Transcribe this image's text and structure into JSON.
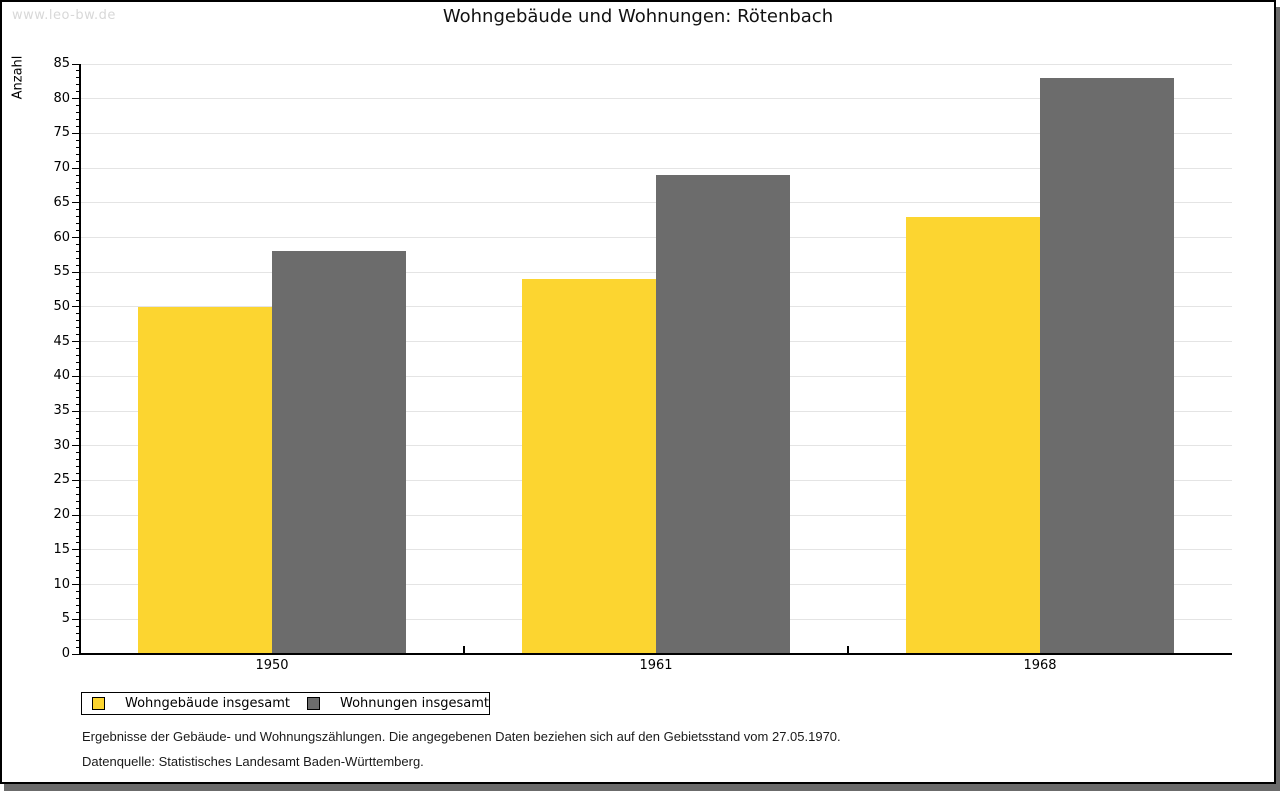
{
  "watermark": "www.leo-bw.de",
  "title": "Wohngebäude und Wohnungen: Rötenbach",
  "chart_data": {
    "type": "bar",
    "title": "Wohngebäude und Wohnungen: Rötenbach",
    "categories": [
      "1950",
      "1961",
      "1968"
    ],
    "series": [
      {
        "name": "Wohngebäude insgesamt",
        "color": "#FCD530",
        "values": [
          50,
          54,
          63
        ]
      },
      {
        "name": "Wohnungen insgesamt",
        "color": "#6C6C6C",
        "values": [
          58,
          69,
          83
        ]
      }
    ],
    "xlabel": "",
    "ylabel": "Anzahl",
    "ylim": [
      0,
      85
    ],
    "ytick_step": 5,
    "minor_tick_step": 1,
    "grid": true,
    "legend_position": "bottom-left",
    "gridline_color": "#e4e4e4"
  },
  "footer": {
    "line1": "Ergebnisse der Gebäude- und Wohnungszählungen. Die angegebenen Daten beziehen sich auf den Gebietsstand vom 27.05.1970.",
    "line2": "Datenquelle: Statistisches Landesamt Baden-Württemberg."
  }
}
